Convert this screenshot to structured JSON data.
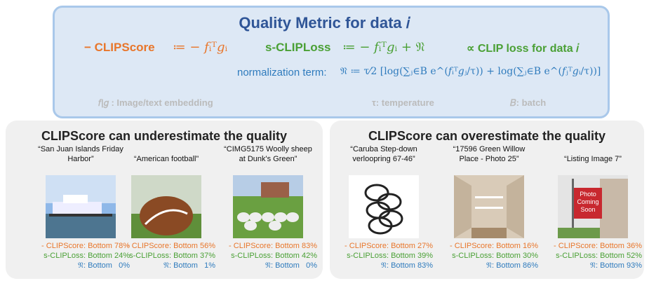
{
  "header": {
    "title": "Quality Metric for data 𝑖",
    "clipscore_label": "− CLIPScore",
    "clipscore_formula": "≔ − 𝑓ᵢᵀ𝑔ᵢ",
    "sclip_label": "s-CLIPLoss",
    "sclip_formula": "≔ − 𝑓ᵢᵀ𝑔ᵢ  +  𝔑",
    "proportional": "∝ CLIP loss for data 𝑖",
    "norm_label": "normalization term:",
    "norm_formula": "𝔑 ≔ τ⁄2 [log(∑ⱼ∈B e^(𝑓ᵢᵀ𝑔ⱼ/τ)) + log(∑ⱼ∈B e^(𝑓ⱼᵀ𝑔ᵢ/τ))]",
    "notes": [
      "𝑓|𝑔 : Image/text embedding",
      "τ: temperature",
      "𝐵: batch"
    ]
  },
  "metric_labels": {
    "clipscore": "- CLIPScore:",
    "sclip": "s-CLIPLoss:",
    "norm": "𝔑:"
  },
  "panels": [
    {
      "title": "CLIPScore can underestimate the quality",
      "items": [
        {
          "caption": "“San Juan Islands Friday Harbor”",
          "clipscore": "Bottom 78%",
          "sclip": "Bottom 24%",
          "norm": "Bottom   0%"
        },
        {
          "caption": "“American football”",
          "clipscore": "Bottom 56%",
          "sclip": "Bottom 37%",
          "norm": "Bottom   1%"
        },
        {
          "caption": "“CIMG5175 Woolly sheep at Dunk's Green”",
          "clipscore": "Bottom 83%",
          "sclip": "Bottom 42%",
          "norm": "Bottom   0%"
        }
      ]
    },
    {
      "title": "CLIPScore can overestimate the quality",
      "items": [
        {
          "caption": "“Caruba Step-down verloopring 67-46”",
          "clipscore": "Bottom 27%",
          "sclip": "Bottom 39%",
          "norm": "Bottom 83%"
        },
        {
          "caption": "“17596 Green Willow Place - Photo 25”",
          "clipscore": "Bottom 16%",
          "sclip": "Bottom 30%",
          "norm": "Bottom 86%"
        },
        {
          "caption": "“Listing Image 7”",
          "clipscore": "Bottom 36%",
          "sclip": "Bottom 52%",
          "norm": "Bottom 93%",
          "image_text": [
            "Photo",
            "Coming",
            "Soon"
          ]
        }
      ]
    }
  ]
}
